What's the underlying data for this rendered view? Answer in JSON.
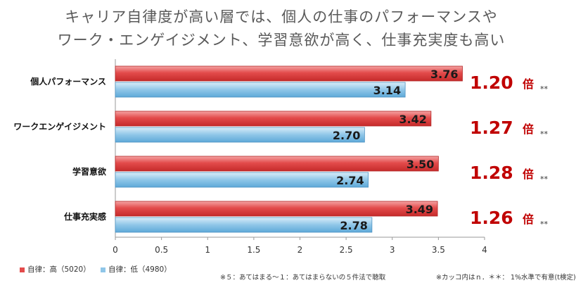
{
  "chart_data": {
    "type": "bar",
    "orientation": "horizontal",
    "title_lines": [
      "キャリア自律度が高い層では、個人の仕事のパフォーマンスや",
      "ワーク・エンゲイジメント、学習意欲が高く、仕事充実度も高い"
    ],
    "categories": [
      "個人パフォーマンス",
      "ワークエンゲイジメント",
      "学習意欲",
      "仕事充実感"
    ],
    "series": [
      {
        "name": "自律：高（5020）",
        "values": [
          3.76,
          3.42,
          3.5,
          3.49
        ],
        "color": "#e34b4b"
      },
      {
        "name": "自律：低（4980）",
        "values": [
          3.14,
          2.7,
          2.74,
          2.78
        ],
        "color": "#8fc6e8"
      }
    ],
    "value_labels": [
      [
        "3.76",
        "3.42",
        "3.50",
        "3.49"
      ],
      [
        "3.14",
        "2.70",
        "2.74",
        "2.78"
      ]
    ],
    "ratios": [
      {
        "value": "1.20",
        "unit": "倍",
        "sig": "**"
      },
      {
        "value": "1.27",
        "unit": "倍",
        "sig": "**"
      },
      {
        "value": "1.28",
        "unit": "倍",
        "sig": "**"
      },
      {
        "value": "1.26",
        "unit": "倍",
        "sig": "**"
      }
    ],
    "xlim": [
      0,
      4
    ],
    "xticks": [
      "0",
      "0.5",
      "1",
      "1.5",
      "2",
      "2.5",
      "3",
      "3.5",
      "4"
    ],
    "grid": false,
    "legend_position": "bottom-left",
    "ratio_color": "#c00000"
  },
  "notes": {
    "scale": "※５：あてはまる～１：あてはまらないの５件法で聴取",
    "significance": "※カッコ内はｎ．＊＊： 1%水準で有意(t検定)"
  }
}
